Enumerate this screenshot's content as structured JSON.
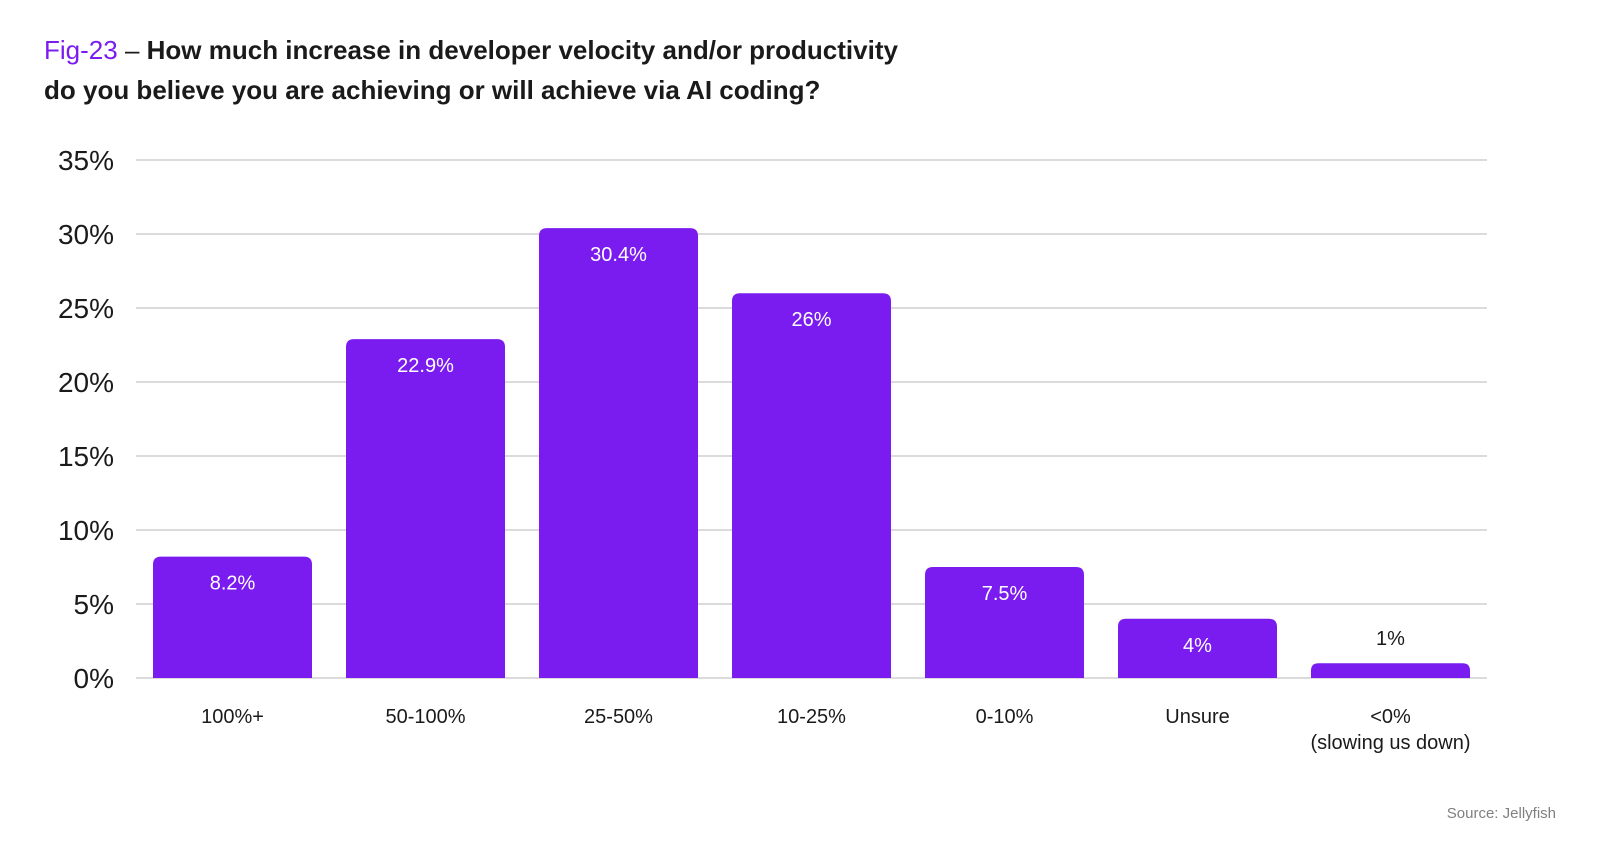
{
  "title": {
    "fig_label": "Fig-23",
    "separator": "–",
    "line1": "How much increase in developer velocity and/or productivity",
    "line2": "do you believe you are achieving or will achieve via AI coding?"
  },
  "source": "Source: Jellyfish",
  "colors": {
    "bar": "#7a1cf0",
    "accent": "#7a1cf0",
    "grid": "#cfcfcf",
    "label_inside": "#ffffff",
    "label_outside": "#1a1a1a"
  },
  "chart_data": {
    "type": "bar",
    "categories": [
      "100%+",
      "50-100%",
      "25-50%",
      "10-25%",
      "0-10%",
      "Unsure",
      "<0%\n(slowing us down)"
    ],
    "values": [
      8.2,
      22.9,
      30.4,
      26,
      7.5,
      4,
      1
    ],
    "data_labels": [
      "8.2%",
      "22.9%",
      "30.4%",
      "26%",
      "7.5%",
      "4%",
      "1%"
    ],
    "ylim": [
      0,
      35
    ],
    "yticks": [
      0,
      5,
      10,
      15,
      20,
      25,
      30,
      35
    ],
    "ytick_labels": [
      "0%",
      "5%",
      "10%",
      "15%",
      "20%",
      "25%",
      "30%",
      "35%"
    ],
    "xlabel": "",
    "ylabel": "",
    "grid": true,
    "legend": "none"
  }
}
